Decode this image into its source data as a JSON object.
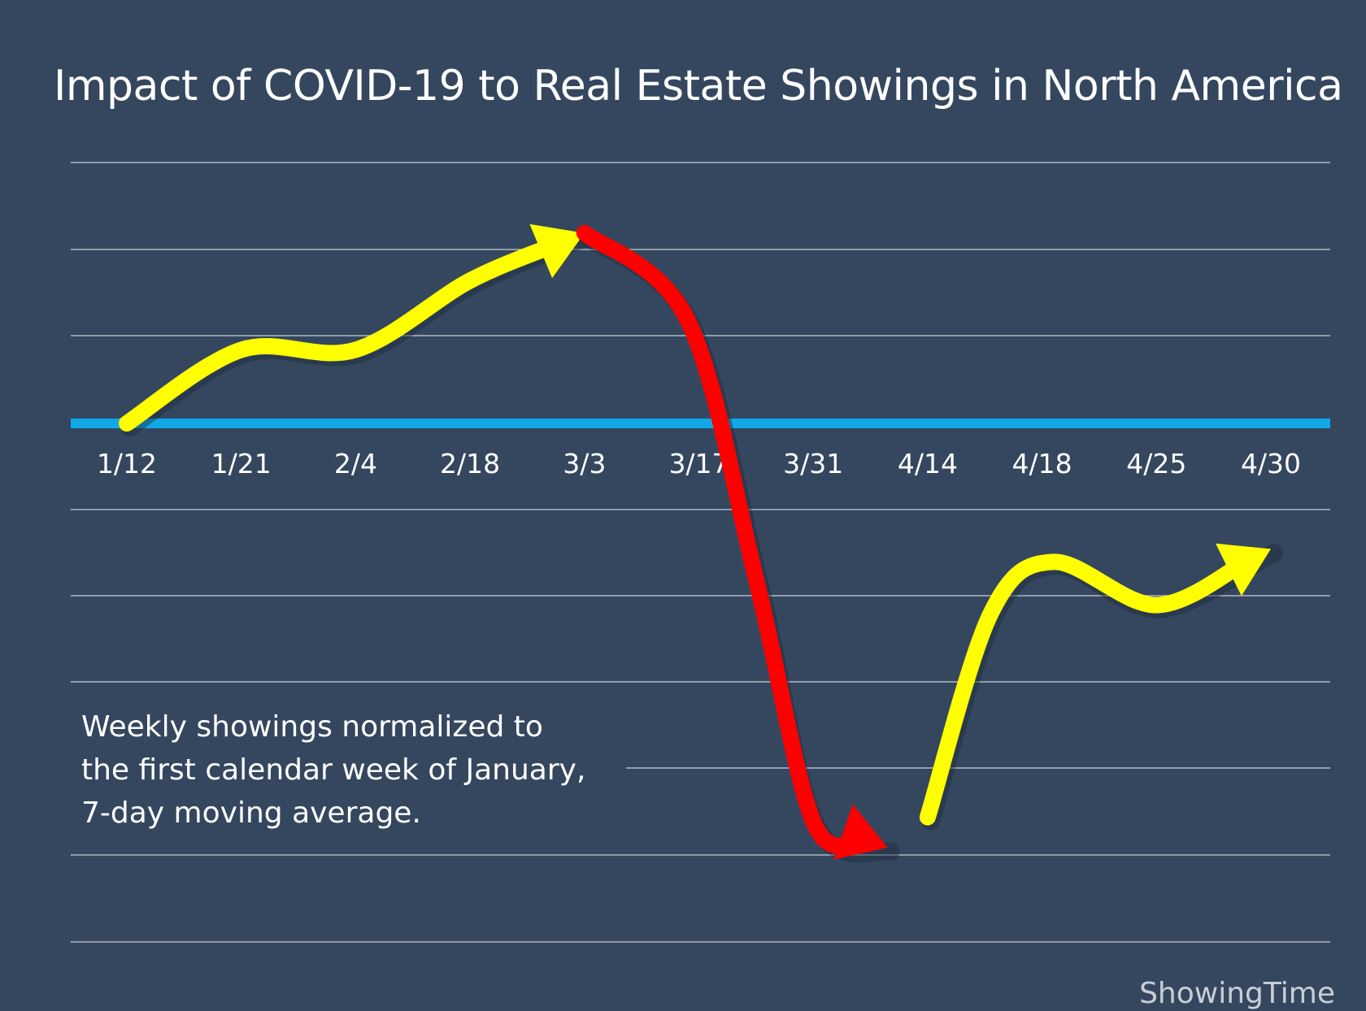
{
  "chart_data": {
    "type": "line",
    "title": "Impact of COVID-19 to Real Estate Showings in North America",
    "categories": [
      "1/12",
      "1/21",
      "2/4",
      "2/18",
      "3/3",
      "3/17",
      "3/31",
      "4/14",
      "4/18",
      "4/25",
      "4/30"
    ],
    "baseline": 0,
    "grid": true,
    "note_lines": [
      "Weekly showings normalized to",
      "the first calendar week of January,",
      "7-day moving average."
    ],
    "segments": [
      {
        "trend": "rising",
        "color": "#ffff00",
        "points": [
          [
            0,
            0
          ],
          [
            1,
            0.85
          ],
          [
            2,
            0.85
          ],
          [
            3,
            1.65
          ],
          [
            4,
            2.2
          ]
        ]
      },
      {
        "trend": "falling",
        "color": "#ff0000",
        "points": [
          [
            4,
            2.2
          ],
          [
            4.9,
            1.2
          ],
          [
            5.5,
            -1.8
          ],
          [
            6,
            -4.6
          ],
          [
            6.65,
            -4.9
          ]
        ]
      },
      {
        "trend": "rising",
        "color": "#ffff00",
        "points": [
          [
            7,
            -4.55
          ],
          [
            7.55,
            -2.2
          ],
          [
            8.1,
            -1.6
          ],
          [
            9,
            -2.1
          ],
          [
            10,
            -1.45
          ]
        ]
      }
    ],
    "colors": {
      "background": "#34475f",
      "baseline": "#12a8e8",
      "grid": "#c9ced6",
      "rising": "#ffff00",
      "falling": "#ff0000"
    }
  },
  "brand": "ShowingTime"
}
